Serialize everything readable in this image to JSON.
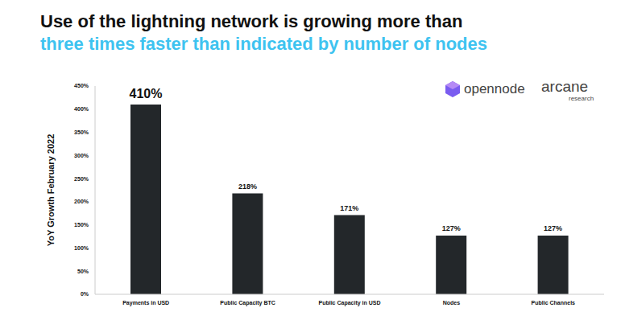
{
  "chart_data": {
    "type": "bar",
    "title": "Use of the lightning network is growing more than",
    "subtitle": "three times faster than indicated by number of nodes",
    "y_label": "YoY Growth February 2022",
    "logos": [
      "opennode",
      "arcane",
      "research"
    ],
    "categories": [
      "Payments in USD",
      "Public Capacity BTC",
      "Public Capacity in USD",
      "Nodes",
      "Public Channels"
    ],
    "values": [
      410,
      218,
      171,
      127,
      127
    ],
    "value_labels": [
      "410%",
      "218%",
      "171%",
      "127%",
      "127%"
    ],
    "color": "#23272a",
    "ylim": [
      0,
      450
    ],
    "yticks": [
      {
        "value": 0,
        "label": "0%"
      },
      {
        "value": 50,
        "label": "50%"
      },
      {
        "value": 100,
        "label": "100%"
      },
      {
        "value": 150,
        "label": "150%"
      },
      {
        "value": 200,
        "label": "200%"
      },
      {
        "value": 250,
        "label": "250%"
      },
      {
        "value": 300,
        "label": "300%"
      },
      {
        "value": 350,
        "label": "350%"
      },
      {
        "value": 400,
        "label": "400%"
      },
      {
        "value": 450,
        "label": "450%"
      }
    ],
    "grid": false,
    "data_labels": true
  }
}
